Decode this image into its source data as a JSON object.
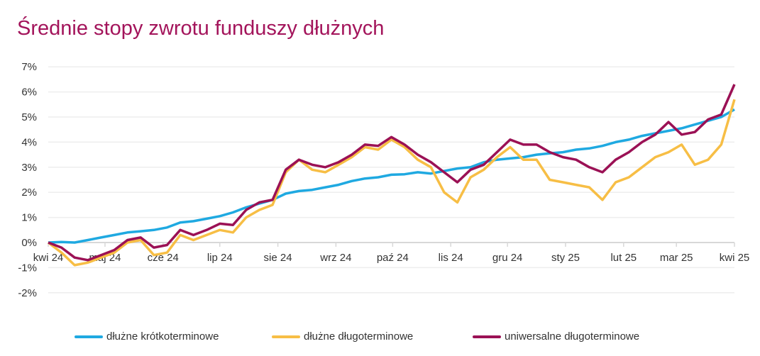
{
  "chart_data": {
    "type": "line",
    "title": "Średnie stopy zwrotu funduszy dłużnych",
    "xlabel": "",
    "ylabel": "",
    "ylim": [
      -2,
      7
    ],
    "yticks": [
      -2,
      -1,
      0,
      1,
      2,
      3,
      4,
      5,
      6,
      7
    ],
    "ytick_labels": [
      "-2%",
      "-1%",
      "0%",
      "1%",
      "2%",
      "3%",
      "4%",
      "5%",
      "6%",
      "7%"
    ],
    "x_unit": "week",
    "xlim": [
      0,
      52
    ],
    "xticks": [
      0,
      4.3,
      8.7,
      13,
      17.4,
      21.8,
      26.1,
      30.5,
      34.8,
      39.2,
      43.6,
      47.6,
      52
    ],
    "xtick_labels": [
      "kwi 24",
      "maj 24",
      "cze 24",
      "lip 24",
      "sie 24",
      "wrz 24",
      "paź 24",
      "lis 24",
      "gru 24",
      "sty 25",
      "lut 25",
      "mar 25",
      "kwi 25"
    ],
    "grid": true,
    "legend_position": "bottom",
    "series": [
      {
        "name": "dłużne krótkoterminowe",
        "color": "#1fa9e1",
        "values": [
          0,
          0.02,
          0.0,
          0.1,
          0.2,
          0.3,
          0.4,
          0.45,
          0.5,
          0.6,
          0.8,
          0.85,
          0.95,
          1.05,
          1.2,
          1.4,
          1.55,
          1.7,
          1.95,
          2.05,
          2.1,
          2.2,
          2.3,
          2.45,
          2.55,
          2.6,
          2.7,
          2.72,
          2.8,
          2.75,
          2.85,
          2.95,
          3.0,
          3.2,
          3.3,
          3.35,
          3.4,
          3.5,
          3.55,
          3.6,
          3.7,
          3.75,
          3.85,
          4.0,
          4.1,
          4.25,
          4.35,
          4.45,
          4.55,
          4.7,
          4.85,
          5.0,
          5.3
        ]
      },
      {
        "name": "dłużne długoterminowe",
        "color": "#f7be45",
        "values": [
          0,
          -0.4,
          -0.9,
          -0.8,
          -0.6,
          -0.4,
          0.0,
          0.1,
          -0.5,
          -0.4,
          0.3,
          0.1,
          0.3,
          0.5,
          0.4,
          1.0,
          1.3,
          1.5,
          2.8,
          3.3,
          2.9,
          2.8,
          3.1,
          3.4,
          3.8,
          3.7,
          4.1,
          3.8,
          3.3,
          3.0,
          2.0,
          1.6,
          2.6,
          2.9,
          3.4,
          3.8,
          3.3,
          3.3,
          2.5,
          2.4,
          2.3,
          2.2,
          1.7,
          2.4,
          2.6,
          3.0,
          3.4,
          3.6,
          3.9,
          3.1,
          3.3,
          3.9,
          5.7
        ]
      },
      {
        "name": "uniwersalne długoterminowe",
        "color": "#9b1155",
        "values": [
          0,
          -0.2,
          -0.6,
          -0.7,
          -0.5,
          -0.3,
          0.1,
          0.2,
          -0.2,
          -0.1,
          0.5,
          0.3,
          0.5,
          0.75,
          0.7,
          1.3,
          1.6,
          1.7,
          2.9,
          3.3,
          3.1,
          3.0,
          3.2,
          3.5,
          3.9,
          3.85,
          4.2,
          3.9,
          3.5,
          3.2,
          2.8,
          2.4,
          2.9,
          3.1,
          3.6,
          4.1,
          3.9,
          3.9,
          3.6,
          3.4,
          3.3,
          3.0,
          2.8,
          3.3,
          3.6,
          4.0,
          4.3,
          4.8,
          4.3,
          4.4,
          4.9,
          5.1,
          6.3
        ]
      }
    ]
  }
}
